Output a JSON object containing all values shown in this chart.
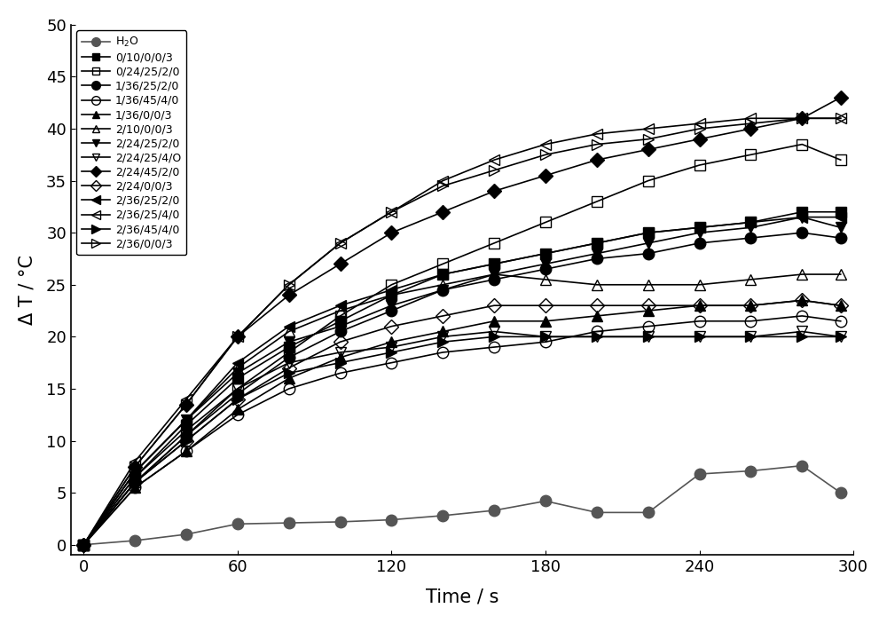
{
  "title": "",
  "xlabel": "Time / s",
  "ylabel": "Δ T / °C",
  "xlim": [
    -5,
    300
  ],
  "ylim": [
    -1,
    50
  ],
  "xticks": [
    0,
    60,
    120,
    180,
    240,
    300
  ],
  "yticks": [
    0,
    5,
    10,
    15,
    20,
    25,
    30,
    35,
    40,
    45,
    50
  ],
  "series": [
    {
      "label": "H$_2$O",
      "marker": "o",
      "fillstyle": "full",
      "color": "#555555",
      "markersize": 9,
      "time": [
        0,
        20,
        40,
        60,
        80,
        100,
        120,
        140,
        160,
        180,
        200,
        220,
        240,
        260,
        280,
        295
      ],
      "values": [
        0,
        0.4,
        1.0,
        2.0,
        2.1,
        2.2,
        2.4,
        2.8,
        3.3,
        4.2,
        3.1,
        3.1,
        6.8,
        7.1,
        7.6,
        5.0
      ]
    },
    {
      "label": "0/10/0/0/3",
      "marker": "s",
      "fillstyle": "full",
      "color": "#000000",
      "markersize": 8,
      "time": [
        0,
        20,
        40,
        60,
        80,
        100,
        120,
        140,
        160,
        180,
        200,
        220,
        240,
        260,
        280,
        295
      ],
      "values": [
        0,
        6.5,
        11.5,
        16,
        19,
        21.5,
        24,
        26,
        27,
        28,
        29,
        30,
        30.5,
        31,
        32,
        32
      ]
    },
    {
      "label": "0/24/25/2/0",
      "marker": "s",
      "fillstyle": "none",
      "color": "#000000",
      "markersize": 8,
      "time": [
        0,
        20,
        40,
        60,
        80,
        100,
        120,
        140,
        160,
        180,
        200,
        220,
        240,
        260,
        280,
        295
      ],
      "values": [
        0,
        6.0,
        10.5,
        15,
        18.5,
        22,
        25,
        27,
        29,
        31,
        33,
        35,
        36.5,
        37.5,
        38.5,
        37
      ]
    },
    {
      "label": "1/36/25/2/0",
      "marker": "o",
      "fillstyle": "full",
      "color": "#000000",
      "markersize": 9,
      "time": [
        0,
        20,
        40,
        60,
        80,
        100,
        120,
        140,
        160,
        180,
        200,
        220,
        240,
        260,
        280,
        295
      ],
      "values": [
        0,
        6.0,
        10.5,
        14.5,
        18,
        20.5,
        22.5,
        24.5,
        25.5,
        26.5,
        27.5,
        28,
        29,
        29.5,
        30,
        29.5
      ]
    },
    {
      "label": "1/36/45/4/0",
      "marker": "o",
      "fillstyle": "none",
      "color": "#000000",
      "markersize": 9,
      "time": [
        0,
        20,
        40,
        60,
        80,
        100,
        120,
        140,
        160,
        180,
        200,
        220,
        240,
        260,
        280,
        295
      ],
      "values": [
        0,
        5.5,
        9,
        12.5,
        15,
        16.5,
        17.5,
        18.5,
        19,
        19.5,
        20.5,
        21,
        21.5,
        21.5,
        22,
        21.5
      ]
    },
    {
      "label": "1/36/0/0/3",
      "marker": "^",
      "fillstyle": "full",
      "color": "#000000",
      "markersize": 8,
      "time": [
        0,
        20,
        40,
        60,
        80,
        100,
        120,
        140,
        160,
        180,
        200,
        220,
        240,
        260,
        280,
        295
      ],
      "values": [
        0,
        5.5,
        9,
        13,
        16,
        18,
        19.5,
        20.5,
        21.5,
        21.5,
        22,
        22.5,
        23,
        23,
        23.5,
        23
      ]
    },
    {
      "label": "2/10/0/0/3",
      "marker": "^",
      "fillstyle": "none",
      "color": "#000000",
      "markersize": 8,
      "time": [
        0,
        20,
        40,
        60,
        80,
        100,
        120,
        140,
        160,
        180,
        200,
        220,
        240,
        260,
        280,
        295
      ],
      "values": [
        0,
        7,
        12,
        17,
        20.5,
        22.5,
        24,
        25,
        26,
        25.5,
        25,
        25,
        25,
        25.5,
        26,
        26
      ]
    },
    {
      "label": "2/24/25/2/0",
      "marker": "v",
      "fillstyle": "full",
      "color": "#000000",
      "markersize": 8,
      "time": [
        0,
        20,
        40,
        60,
        80,
        100,
        120,
        140,
        160,
        180,
        200,
        220,
        240,
        260,
        280,
        295
      ],
      "values": [
        0,
        7,
        12,
        16.5,
        19.5,
        21,
        23,
        24.5,
        26,
        27,
        28,
        29,
        30,
        30.5,
        31.5,
        30.5
      ]
    },
    {
      "label": "2/24/25/4/O",
      "marker": "v",
      "fillstyle": "none",
      "color": "#000000",
      "markersize": 8,
      "time": [
        0,
        20,
        40,
        60,
        80,
        100,
        120,
        140,
        160,
        180,
        200,
        220,
        240,
        260,
        280,
        295
      ],
      "values": [
        0,
        6.5,
        11,
        15,
        17.5,
        18.5,
        19,
        20,
        20.5,
        20,
        20,
        20,
        20,
        20,
        20.5,
        20
      ]
    },
    {
      "label": "2/24/45/2/0",
      "marker": "D",
      "fillstyle": "full",
      "color": "#000000",
      "markersize": 8,
      "time": [
        0,
        20,
        40,
        60,
        80,
        100,
        120,
        140,
        160,
        180,
        200,
        220,
        240,
        260,
        280,
        295
      ],
      "values": [
        0,
        7.5,
        13.5,
        20,
        24,
        27,
        30,
        32,
        34,
        35.5,
        37,
        38,
        39,
        40,
        41,
        43
      ]
    },
    {
      "label": "2/24/0/0/3",
      "marker": "D",
      "fillstyle": "none",
      "color": "#000000",
      "markersize": 8,
      "time": [
        0,
        20,
        40,
        60,
        80,
        100,
        120,
        140,
        160,
        180,
        200,
        220,
        240,
        260,
        280,
        295
      ],
      "values": [
        0,
        6,
        10,
        14,
        17,
        19.5,
        21,
        22,
        23,
        23,
        23,
        23,
        23,
        23,
        23.5,
        23
      ]
    },
    {
      "label": "2/36/25/2/0",
      "marker_type": "left_triangle_filled",
      "color": "#000000",
      "markersize": 9,
      "time": [
        0,
        20,
        40,
        60,
        80,
        100,
        120,
        140,
        160,
        180,
        200,
        220,
        240,
        260,
        280,
        295
      ],
      "values": [
        0,
        7,
        12,
        17.5,
        21,
        23,
        24.5,
        26,
        27,
        28,
        29,
        30,
        30.5,
        31,
        31.5,
        31.5
      ]
    },
    {
      "label": "2/36/25/4/0",
      "marker_type": "left_triangle_open",
      "color": "#000000",
      "markersize": 9,
      "time": [
        0,
        20,
        40,
        60,
        80,
        100,
        120,
        140,
        160,
        180,
        200,
        220,
        240,
        260,
        280,
        295
      ],
      "values": [
        0,
        8,
        14,
        20,
        25,
        29,
        32,
        35,
        37,
        38.5,
        39.5,
        40,
        40.5,
        41,
        41,
        41
      ]
    },
    {
      "label": "2/36/45/4/0",
      "marker_type": "right_triangle_filled",
      "color": "#000000",
      "markersize": 9,
      "time": [
        0,
        20,
        40,
        60,
        80,
        100,
        120,
        140,
        160,
        180,
        200,
        220,
        240,
        260,
        280,
        295
      ],
      "values": [
        0,
        6,
        10,
        14,
        16.5,
        17.5,
        18.5,
        19.5,
        20,
        20,
        20,
        20,
        20,
        20,
        20,
        20
      ]
    },
    {
      "label": "2/36/0/0/3",
      "marker_type": "right_triangle_open",
      "color": "#000000",
      "markersize": 9,
      "time": [
        0,
        20,
        40,
        60,
        80,
        100,
        120,
        140,
        160,
        180,
        200,
        220,
        240,
        260,
        280,
        295
      ],
      "values": [
        0,
        7.5,
        13.5,
        20,
        25,
        29,
        32,
        34.5,
        36,
        37.5,
        38.5,
        39,
        40,
        40.5,
        41,
        41
      ]
    }
  ],
  "background_color": "#ffffff",
  "legend_fontsize": 9,
  "axis_fontsize": 15,
  "tick_fontsize": 13
}
